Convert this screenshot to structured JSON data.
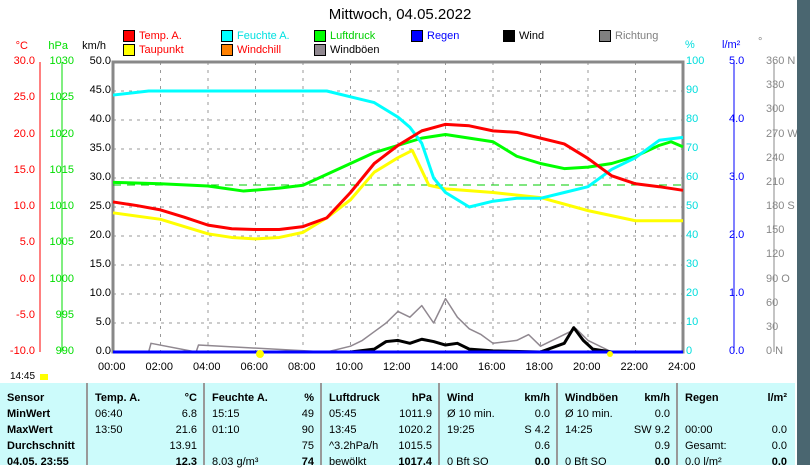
{
  "title": "Mittwoch, 04.05.2022",
  "legend": [
    {
      "label": "Temp. A.",
      "color": "#ff0000",
      "text": "#ff0000"
    },
    {
      "label": "Feuchte A.",
      "color": "#00ffff",
      "text": "#00e0e0"
    },
    {
      "label": "Luftdruck",
      "color": "#00ff00",
      "text": "#00d000"
    },
    {
      "label": "Regen",
      "color": "#0000ff",
      "text": "#0000ff"
    },
    {
      "label": "Wind",
      "color": "#000000",
      "text": "#000000"
    },
    {
      "label": "Richtung",
      "color": "#808080",
      "text": "#808080"
    },
    {
      "label": "Taupunkt",
      "color": "#ffff00",
      "text": "#ff0000"
    },
    {
      "label": "Windchill",
      "color": "#ff8000",
      "text": "#ff0000"
    },
    {
      "label": "Windböen",
      "color": "#908890",
      "text": "#000000"
    }
  ],
  "axes": {
    "celsius": {
      "unit": "°C",
      "ticks": [
        "30.0",
        "25.0",
        "20.0",
        "15.0",
        "10.0",
        "5.0",
        "0.0",
        "-5.0",
        "-10.0"
      ]
    },
    "hpa": {
      "unit": "hPa",
      "ticks": [
        "1030",
        "1025",
        "1020",
        "1015",
        "1010",
        "1005",
        "1000",
        "995",
        "990"
      ]
    },
    "kmh": {
      "unit": "km/h",
      "ticks": [
        "50.0",
        "45.0",
        "40.0",
        "35.0",
        "30.0",
        "25.0",
        "20.0",
        "15.0",
        "10.0",
        "5.0",
        "0.0"
      ]
    },
    "percent": {
      "unit": "%",
      "ticks": [
        "100",
        "90",
        "80",
        "70",
        "60",
        "50",
        "40",
        "30",
        "20",
        "10",
        "0"
      ]
    },
    "rain": {
      "unit": "l/m²",
      "ticks": [
        "5.0",
        "4.0",
        "3.0",
        "2.0",
        "1.0",
        "0.0"
      ]
    },
    "direction": {
      "unit": "°",
      "ticks": [
        "360 N",
        "330",
        "300",
        "270 W",
        "240",
        "210",
        "180 S",
        "150",
        "120",
        "90 O",
        "60",
        "30",
        "0 N"
      ]
    },
    "time": {
      "ticks": [
        "00:00",
        "02:00",
        "04:00",
        "06:00",
        "08:00",
        "10:00",
        "12:00",
        "14:00",
        "16:00",
        "18:00",
        "20:00",
        "22:00",
        "24:00"
      ]
    }
  },
  "current_time": "14:45",
  "chart_data": {
    "type": "line",
    "title": "Mittwoch, 04.05.2022",
    "xlim": [
      0,
      24
    ],
    "grid": true,
    "legend": "top",
    "series": [
      {
        "name": "Temp. A.",
        "axis": "°C",
        "x": [
          0,
          1,
          2,
          3,
          4,
          5,
          6,
          7,
          8,
          9,
          10,
          11,
          12,
          13,
          14,
          15,
          16,
          17,
          18,
          19,
          20,
          21,
          22,
          23,
          24
        ],
        "values": [
          10.7,
          10.2,
          9.6,
          8.6,
          7.5,
          7.0,
          6.9,
          6.9,
          7.3,
          8.5,
          12,
          16,
          18.5,
          20.5,
          21.4,
          21.2,
          20.5,
          20.3,
          19.5,
          18.7,
          16.7,
          14.3,
          13.2,
          12.8,
          12.3
        ]
      },
      {
        "name": "Taupunkt",
        "axis": "°C",
        "x": [
          0,
          2,
          4,
          5,
          6,
          7,
          8,
          9,
          10,
          11,
          12,
          12.6,
          13.3,
          14,
          16,
          18,
          20,
          22,
          24
        ],
        "values": [
          9.2,
          8.3,
          6.3,
          5.8,
          5.6,
          5.8,
          6.5,
          8.5,
          11,
          14.8,
          16.8,
          17.8,
          13,
          12.5,
          12,
          11.3,
          9.5,
          8.1,
          8.1
        ]
      },
      {
        "name": "Feuchte A.",
        "axis": "%",
        "x": [
          0,
          1.5,
          9,
          10,
          11,
          12,
          12.5,
          13,
          13.5,
          14,
          15,
          16,
          17,
          18,
          19,
          20,
          21,
          22,
          23,
          24
        ],
        "values": [
          88.6,
          90,
          90,
          88,
          86,
          81,
          77.5,
          72,
          60,
          55,
          50,
          52,
          53,
          53,
          55,
          57,
          63,
          67,
          73,
          74
        ]
      },
      {
        "name": "Luftdruck",
        "axis": "hPa",
        "x": [
          0,
          2,
          4,
          5.5,
          7,
          8,
          9,
          10,
          11,
          12,
          13,
          14,
          15,
          16,
          17,
          18,
          19,
          20,
          21,
          22,
          23,
          23.5,
          24
        ],
        "values": [
          1013.4,
          1013.2,
          1012.9,
          1012.2,
          1012.6,
          1013,
          1014.5,
          1016,
          1017.5,
          1018.5,
          1019.5,
          1020,
          1019.5,
          1019,
          1017,
          1016,
          1015.3,
          1015.5,
          1016,
          1017,
          1018.5,
          1019,
          1018.3
        ]
      },
      {
        "name": "Wind",
        "axis": "km/h",
        "x": [
          0,
          10,
          11,
          11.5,
          12,
          12.5,
          13,
          13.5,
          14,
          14.5,
          15,
          16,
          18,
          19,
          19.4,
          19.8,
          20.2,
          21,
          24
        ],
        "values": [
          0,
          0,
          0.5,
          1.8,
          2,
          1.5,
          2.2,
          1.8,
          1.2,
          1.5,
          0.5,
          0.2,
          0,
          1.5,
          4.2,
          2,
          0.5,
          0,
          0
        ]
      },
      {
        "name": "Windböen",
        "axis": "km/h",
        "x": [
          0,
          1.5,
          1.6,
          3.5,
          3.6,
          9,
          10,
          10.5,
          11,
          11.5,
          12,
          12.5,
          13,
          13.5,
          14,
          14.5,
          15,
          15.5,
          16,
          17,
          17.5,
          18,
          19,
          19.5,
          20,
          21,
          24
        ],
        "values": [
          0,
          0,
          1.5,
          0,
          1.2,
          0,
          1,
          2,
          3.5,
          5,
          7,
          6,
          8,
          5,
          9.2,
          6,
          4,
          3,
          1.5,
          2,
          3,
          1,
          3,
          4,
          2,
          0,
          0
        ]
      },
      {
        "name": "Regen",
        "axis": "l/m²",
        "x": [
          0,
          24
        ],
        "values": [
          0,
          0
        ]
      }
    ]
  },
  "table": {
    "headers": [
      {
        "label": "Sensor"
      },
      {
        "label": "Temp. A.",
        "unit": "°C"
      },
      {
        "label": "Feuchte A.",
        "unit": "%"
      },
      {
        "label": "Luftdruck",
        "unit": "hPa"
      },
      {
        "label": "Wind",
        "unit": "km/h"
      },
      {
        "label": "Windböen",
        "unit": "km/h"
      },
      {
        "label": "Regen",
        "unit": "l/m²"
      }
    ],
    "rows": [
      {
        "label": "MinWert",
        "cells": [
          [
            "06:40",
            "6.8"
          ],
          [
            "15:15",
            "49"
          ],
          [
            "05:45",
            "1011.9"
          ],
          [
            "Ø 10 min.",
            "0.0"
          ],
          [
            "Ø 10 min.",
            "0.0"
          ],
          [
            "",
            ""
          ]
        ]
      },
      {
        "label": "MaxWert",
        "cells": [
          [
            "13:50",
            "21.6"
          ],
          [
            "01:10",
            "90"
          ],
          [
            "13:45",
            "1020.2"
          ],
          [
            "19:25",
            "S 4.2"
          ],
          [
            "14:25",
            "SW 9.2"
          ],
          [
            "00:00",
            "0.0"
          ]
        ]
      },
      {
        "label": "Durchschnitt",
        "cells": [
          [
            "",
            "13.91"
          ],
          [
            "",
            "75"
          ],
          [
            "^3.2hPa/h",
            "1015.5"
          ],
          [
            "",
            "0.6"
          ],
          [
            "",
            "0.9"
          ],
          [
            "Gesamt:",
            "0.0"
          ]
        ]
      },
      {
        "label": "04.05. 23:55",
        "cells": [
          [
            "",
            "12.3"
          ],
          [
            "8.03 g/m³",
            "74"
          ],
          [
            "bewölkt",
            "1017.4"
          ],
          [
            "0 Bft SO",
            "0.0"
          ],
          [
            "0 Bft SO",
            "0.0"
          ],
          [
            "0.0 l/m²",
            "0.0"
          ]
        ]
      }
    ]
  }
}
